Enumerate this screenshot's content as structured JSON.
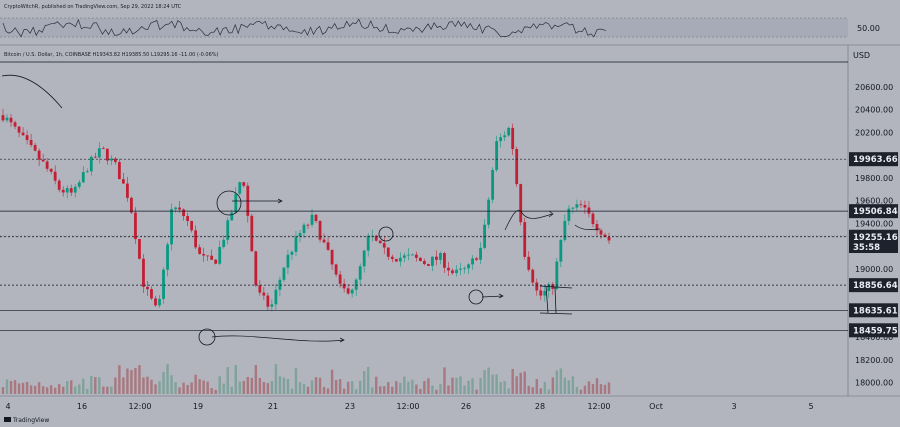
{
  "header": {
    "published": "CryptoWitchR, published on TradingView.com, Sep 29, 2022 18:24 UTC",
    "symbol_line": "Bitcoin / U.S. Dollar, 1h, COINBASE  H19343.82  H19385.50  L19295.16  -11.00 (-0.06%)"
  },
  "currency": "USD",
  "indicator": {
    "name": "RSI",
    "level_label": "50.00",
    "range": [
      0,
      100
    ],
    "band": [
      30,
      70
    ]
  },
  "price_axis": {
    "ticks": [
      "20600.00",
      "20400.00",
      "20200.00",
      "19800.00",
      "19600.00",
      "19400.00",
      "19000.00",
      "18400.00",
      "18200.00",
      "18000.00"
    ]
  },
  "levels": [
    {
      "label": "19963.66",
      "style": "dotted",
      "dark": true
    },
    {
      "label": "19506.84",
      "style": "solid",
      "dark": true
    },
    {
      "label": "19282.03",
      "style": "dotted",
      "dark": true
    },
    {
      "label": "18856.64",
      "style": "dotted",
      "dark": true
    },
    {
      "label": "18635.61",
      "style": "solid",
      "dark": true
    },
    {
      "label": "18459.75",
      "style": "solid",
      "dark": true
    }
  ],
  "current_price": {
    "label": "19255.16",
    "countdown": "35:58"
  },
  "time_axis": {
    "labels": [
      "4",
      "16",
      "12:00",
      "19",
      "21",
      "23",
      "12:00",
      "26",
      "28",
      "12:00",
      "Oct",
      "3",
      "5"
    ]
  },
  "branding": {
    "logo": "TradingView"
  },
  "colors": {
    "up": "#089981",
    "down": "#c21f35",
    "background": "#b2b5be",
    "line": "#131722",
    "label_bg": "#1e222d"
  },
  "chart_data": {
    "type": "candlestick",
    "symbol": "Bitcoin / U.S. Dollar",
    "interval": "1h",
    "ylim": [
      17900,
      20800
    ],
    "x": [
      "Sep 14",
      "Sep 16",
      "Sep 17 12:00",
      "Sep 19",
      "Sep 21",
      "Sep 23",
      "Sep 24 12:00",
      "Sep 26",
      "Sep 28",
      "Sep 29 12:00",
      "Oct 1",
      "Oct 3",
      "Oct 5"
    ],
    "close_path": [
      [
        0,
        20350
      ],
      [
        2,
        20200
      ],
      [
        4,
        20050
      ],
      [
        6,
        19900
      ],
      [
        8,
        19700
      ],
      [
        10,
        19650
      ],
      [
        12,
        19900
      ],
      [
        14,
        20050
      ],
      [
        16,
        19900
      ],
      [
        18,
        19600
      ],
      [
        20,
        18850
      ],
      [
        22,
        18600
      ],
      [
        24,
        19550
      ],
      [
        26,
        19450
      ],
      [
        28,
        19100
      ],
      [
        30,
        19050
      ],
      [
        32,
        19400
      ],
      [
        34,
        19850
      ],
      [
        36,
        18800
      ],
      [
        38,
        18650
      ],
      [
        40,
        19050
      ],
      [
        42,
        19300
      ],
      [
        44,
        19450
      ],
      [
        46,
        19150
      ],
      [
        48,
        18800
      ],
      [
        50,
        18850
      ],
      [
        52,
        19300
      ],
      [
        54,
        19150
      ],
      [
        56,
        19100
      ],
      [
        58,
        19100
      ],
      [
        60,
        19050
      ],
      [
        62,
        19100
      ],
      [
        64,
        18950
      ],
      [
        66,
        19000
      ],
      [
        68,
        19200
      ],
      [
        70,
        20100
      ],
      [
        72,
        20250
      ],
      [
        74,
        19150
      ],
      [
        76,
        18750
      ],
      [
        78,
        18850
      ],
      [
        80,
        19500
      ],
      [
        82,
        19550
      ],
      [
        84,
        19400
      ],
      [
        86,
        19255
      ]
    ],
    "horizontal_levels": [
      19963.66,
      19506.84,
      19282.03,
      18856.64,
      18635.61,
      18459.75
    ],
    "last_price": 19255.16,
    "rsi": {
      "level": 50.0
    }
  }
}
